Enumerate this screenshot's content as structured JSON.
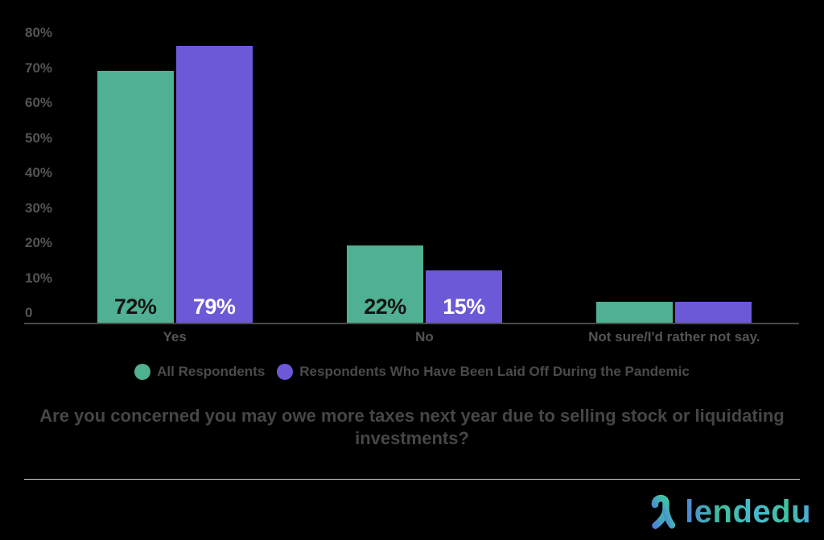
{
  "page": {
    "background": "#000000"
  },
  "chart_data": {
    "type": "bar",
    "title": "Are you concerned you may owe more taxes next year due to selling stock or liquidating investments?",
    "categories": [
      "Yes",
      "No",
      "Not sure/I'd rather not say."
    ],
    "series": [
      {
        "name": "All Respondents",
        "color": "#4fb192",
        "label_color": "#141414",
        "values": [
          72,
          22,
          6
        ],
        "bar_labels": [
          "72%",
          "22%",
          ""
        ]
      },
      {
        "name": "Respondents Who Have Been Laid Off During the Pandemic",
        "color": "#6b59d8",
        "label_color": "#ffffff",
        "values": [
          79,
          15,
          6
        ],
        "bar_labels": [
          "79%",
          "15%",
          ""
        ]
      }
    ],
    "xlabel": "",
    "ylabel": "",
    "ylim": [
      0,
      80
    ],
    "yticks": {
      "values": [
        80,
        70,
        60,
        50,
        40,
        30,
        20,
        10,
        0
      ],
      "labels": [
        "80%",
        "70%",
        "60%",
        "50%",
        "40%",
        "30%",
        "20%",
        "10%",
        "0"
      ]
    },
    "grid": false,
    "legend_position": "bottom-center"
  },
  "footer": {
    "logo_text": "lendedu"
  },
  "colors": {
    "axis_line": "#4a4a4a",
    "tick_label": "#545454",
    "category_label": "#545454",
    "legend_label": "#4a4a4a",
    "title": "#464646",
    "divider": "#d0d0d0",
    "logo_gradient_start": "#4d85da",
    "logo_gradient_mid": "#3fc29b",
    "logo_gradient_end": "#4da9dc"
  }
}
